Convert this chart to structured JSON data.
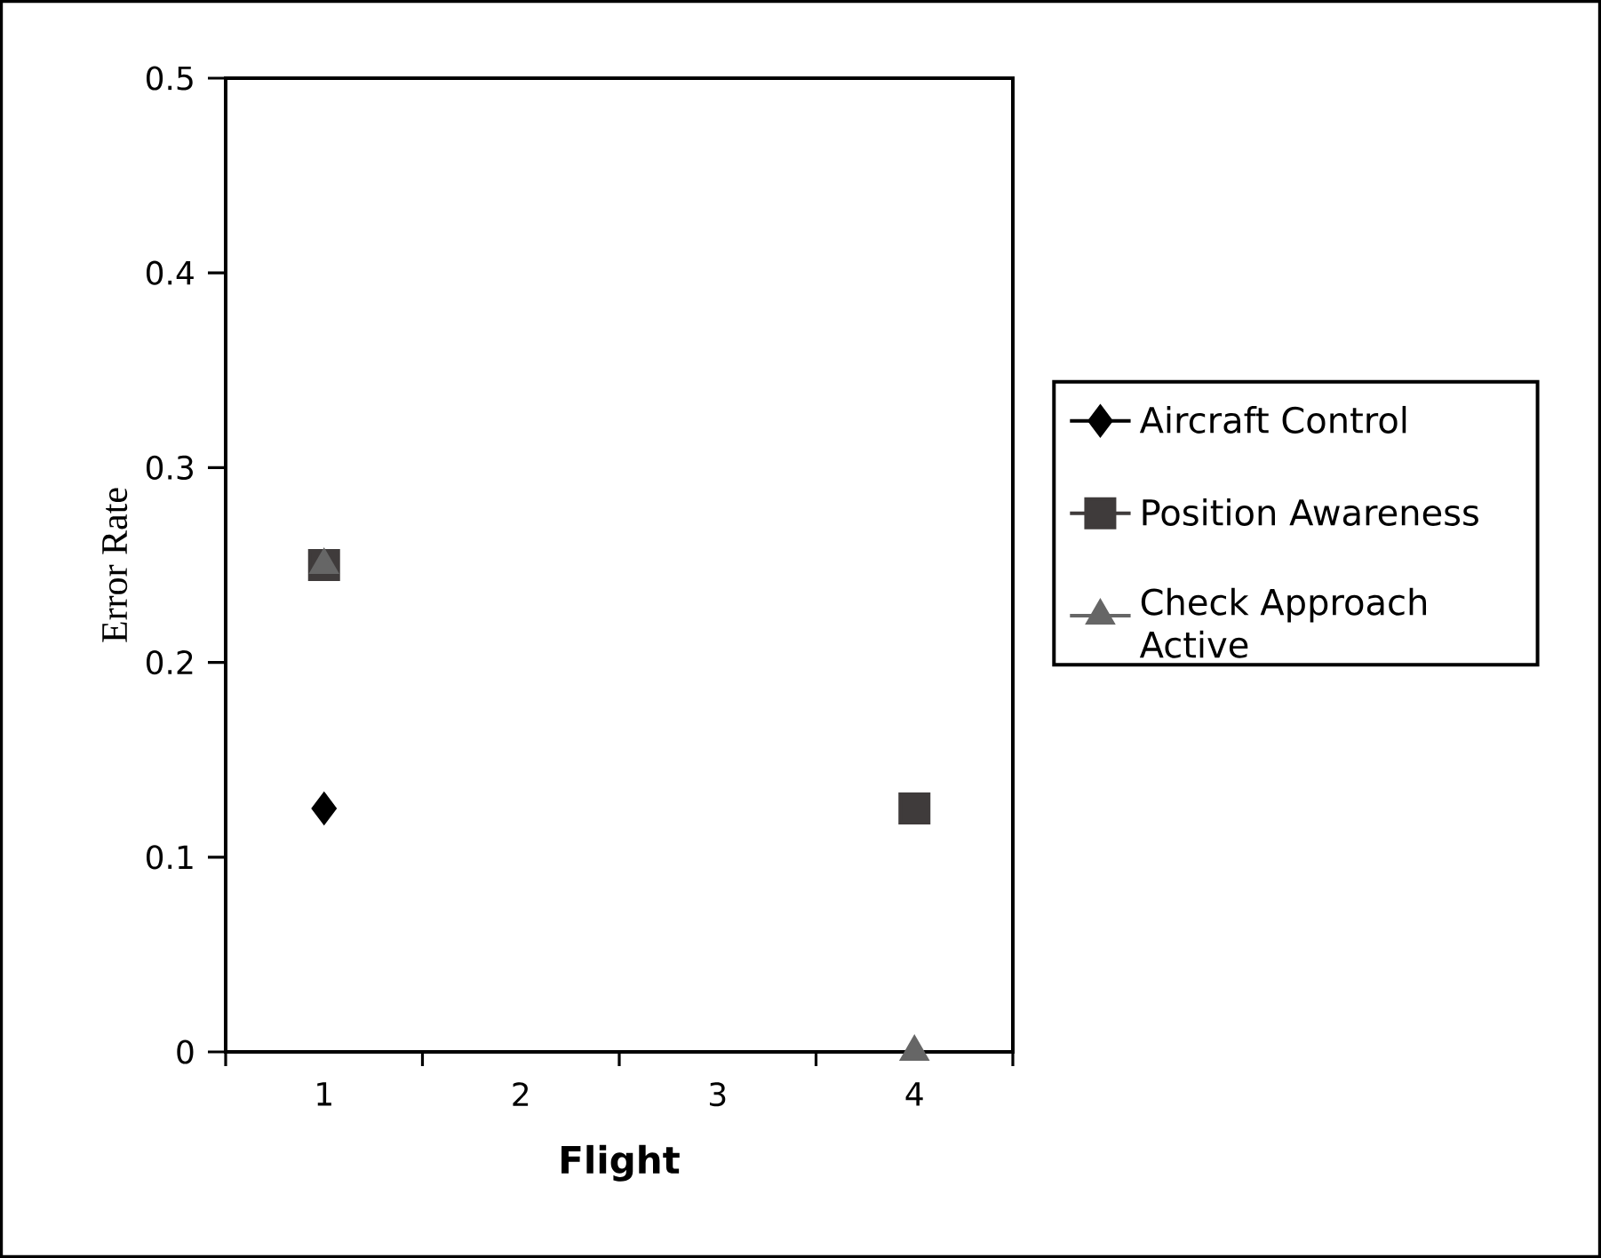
{
  "chart_data": {
    "type": "scatter",
    "xlabel": "Flight",
    "ylabel": "Error Rate",
    "categories": [
      "1",
      "2",
      "3",
      "4"
    ],
    "ylim": [
      0,
      0.5
    ],
    "yticks": [
      0,
      0.1,
      0.2,
      0.3,
      0.4,
      0.5
    ],
    "legend": "right",
    "grid": false,
    "series": [
      {
        "name": "Aircraft Control",
        "color": "#000000",
        "marker": "diamond",
        "values": [
          0.125,
          null,
          null,
          null
        ]
      },
      {
        "name": "Position Awareness",
        "color": "#3f3b3b",
        "marker": "square",
        "values": [
          0.25,
          null,
          null,
          0.125
        ]
      },
      {
        "name": "Check Approach Active",
        "color": "#666666",
        "marker": "triangle",
        "values": [
          0.25,
          null,
          null,
          0
        ]
      }
    ]
  }
}
